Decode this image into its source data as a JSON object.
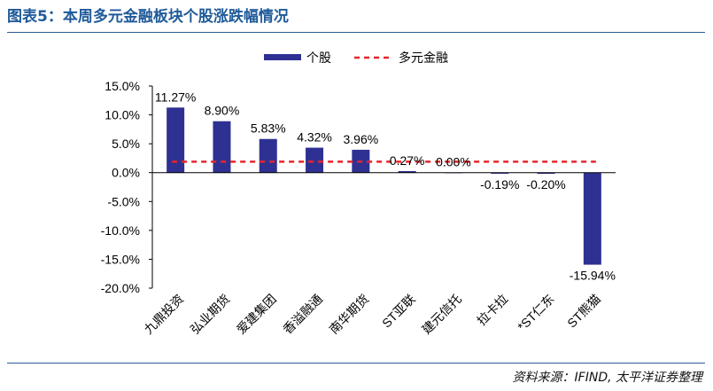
{
  "figure": {
    "title": "图表5：本周多元金融板块个股涨跌幅情况",
    "source": "资料来源：IFIND, 太平洋证券整理"
  },
  "colors": {
    "bar": "#2e3192",
    "reference_line": "#e8242b",
    "text": "#000000",
    "rule": "#2a5b94"
  },
  "chart_data": {
    "type": "bar",
    "categories": [
      "九鼎投资",
      "弘业期货",
      "爱建集团",
      "香溢融通",
      "南华期货",
      "ST亚联",
      "建元信托",
      "拉卡拉",
      "*ST仁东",
      "ST熊猫"
    ],
    "series": [
      {
        "name": "个股",
        "values": [
          11.27,
          8.9,
          5.83,
          4.32,
          3.96,
          0.27,
          0.0,
          -0.19,
          -0.2,
          -15.94
        ],
        "labels": [
          "11.27%",
          "8.90%",
          "5.83%",
          "4.32%",
          "3.96%",
          "0.27%",
          "0.00%",
          "-0.19%",
          "-0.20%",
          "-15.94%"
        ]
      }
    ],
    "reference_line": {
      "name": "多元金融",
      "value": 1.9,
      "style": "dashed"
    },
    "y_ticks": [
      15,
      10,
      5,
      0,
      -5,
      -10,
      -15,
      -20
    ],
    "y_tick_labels": [
      "15.0%",
      "10.0%",
      "5.0%",
      "0.0%",
      "-5.0%",
      "-10.0%",
      "-15.0%",
      "-20.0%"
    ],
    "ylim": [
      -20,
      15
    ],
    "grid": false,
    "legend_position": "top-center"
  }
}
